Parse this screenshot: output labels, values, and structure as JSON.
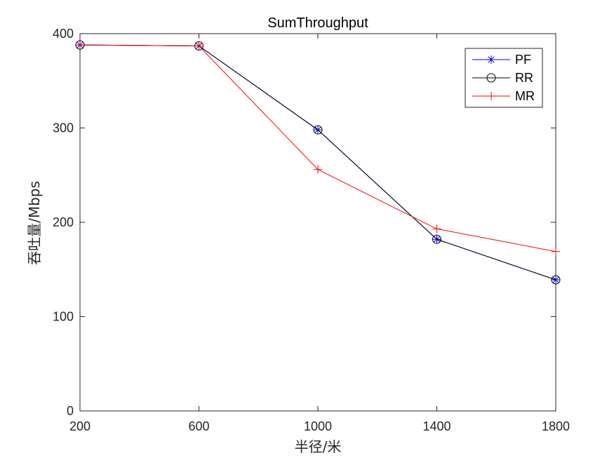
{
  "chart_data": {
    "type": "line",
    "title": "SumThroughput",
    "xlabel": "半径/米",
    "ylabel": "吞吐量/Mbps",
    "x": [
      200,
      600,
      1000,
      1400,
      1800
    ],
    "xlim": [
      200,
      1800
    ],
    "ylim": [
      0,
      400
    ],
    "xticks": [
      "200",
      "600",
      "1000",
      "1400",
      "1800"
    ],
    "yticks": [
      "0",
      "100",
      "200",
      "300",
      "400"
    ],
    "grid": false,
    "legend_position": "top-right",
    "series": [
      {
        "name": "PF",
        "values": [
          388,
          387,
          298,
          182,
          139
        ],
        "color": "#0000ff",
        "marker": "asterisk"
      },
      {
        "name": "RR",
        "values": [
          388,
          387,
          298,
          182,
          139
        ],
        "color": "#000000",
        "marker": "circle"
      },
      {
        "name": "MR",
        "values": [
          388,
          387,
          256,
          193,
          169
        ],
        "color": "#ff0000",
        "marker": "plus"
      }
    ]
  }
}
